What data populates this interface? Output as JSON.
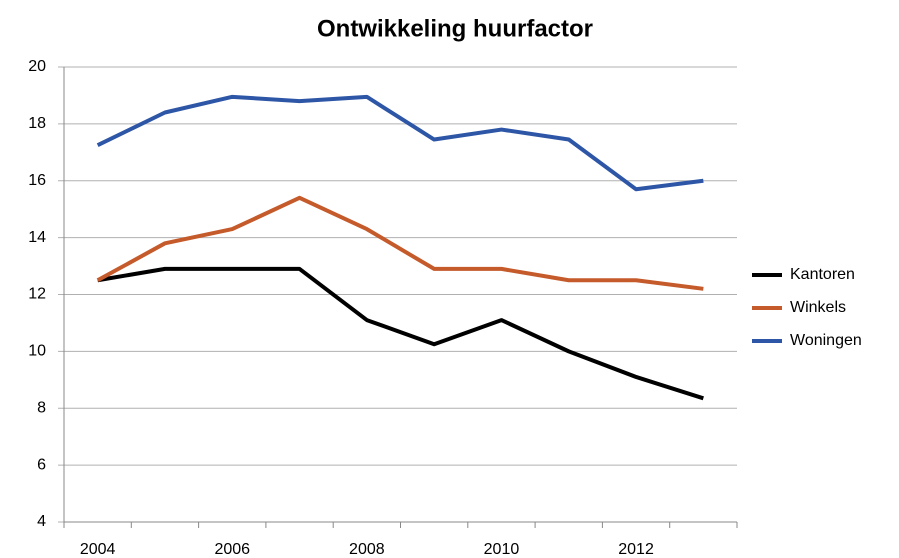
{
  "chart_data": {
    "type": "line",
    "title": "Ontwikkeling huurfactor",
    "categories": [
      "2004",
      null,
      "2006",
      null,
      "2008",
      null,
      "2010",
      null,
      "2012",
      null
    ],
    "series": [
      {
        "name": "Kantoren",
        "color": "#000000",
        "values": [
          12.5,
          12.9,
          12.9,
          12.9,
          11.1,
          10.25,
          11.1,
          10.0,
          9.1,
          8.35
        ]
      },
      {
        "name": "Winkels",
        "color": "#c55a2b",
        "values": [
          12.5,
          13.8,
          14.3,
          15.4,
          14.3,
          12.9,
          12.9,
          12.5,
          12.5,
          12.2
        ]
      },
      {
        "name": "Woningen",
        "color": "#2e56a6",
        "values": [
          17.25,
          18.4,
          18.95,
          18.8,
          18.95,
          17.45,
          17.8,
          17.45,
          15.7,
          16.0
        ]
      }
    ],
    "ylim": [
      4,
      20
    ],
    "yticks": [
      4,
      6,
      8,
      10,
      12,
      14,
      16,
      18,
      20
    ],
    "grid": true,
    "legend": "right"
  }
}
